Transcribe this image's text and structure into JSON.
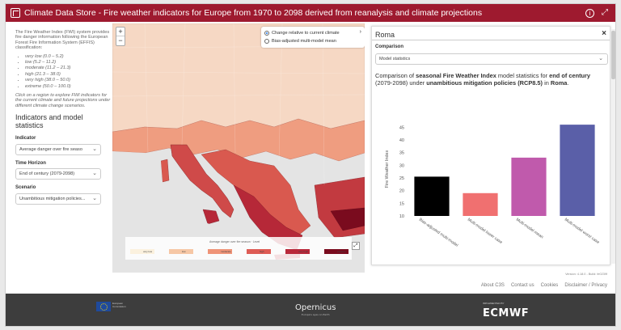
{
  "app": {
    "title": "Climate Data Store - Fire weather indicators for Europe from 1970 to 2098 derived from reanalysis and climate projections",
    "info_icon": "info-icon",
    "expand_icon": "expand-icon"
  },
  "sidebar": {
    "intro": "The Fire Weather Index (FWI) system provides fire danger information following the European Forest Fire Information System (EFFIS) classification:",
    "classes": [
      "very low (0.0 – 5.2)",
      "low (5.2 – 11.2)",
      "moderate (11.2 – 21.3)",
      "high (21.3 – 38.0)",
      "very high (38.0 – 50.0)",
      "extreme (50.0 – 100.0)"
    ],
    "help": "Click on a region to explore FWI indicators for the current climate and future projections under different climate change scenarios.",
    "heading": "Indicators and model statistics",
    "indicator_label": "Indicator",
    "indicator_value": "Average danger over fire seaso",
    "horizon_label": "Time Horizon",
    "horizon_value": "End of century (2079-2098)",
    "scenario_label": "Scenario",
    "scenario_value": "Unambitious mitigation policies..."
  },
  "map": {
    "zoom_in": "+",
    "zoom_out": "−",
    "option_1": "Change relative to current climate",
    "option_2": "Bias-adjusted multi-model mean",
    "selected_option": "Change relative to current climate",
    "legend_title": "Average danger over fire season · Level",
    "legend_items": [
      "very low",
      "low",
      "moderate",
      "high",
      "very high",
      "extreme"
    ],
    "legend_colors": [
      "#fbf1de",
      "#f6c7a5",
      "#ef9478",
      "#de5c55",
      "#b9283a",
      "#7a0b1e"
    ]
  },
  "panel": {
    "region": "Roma",
    "close": "×",
    "comparison_label": "Comparison",
    "comparison_value": "Model statistics",
    "desc_pre": "Comparison of ",
    "desc_b1": "seasonal Fire Weather Index",
    "desc_mid1": " model statistics for ",
    "desc_b2": "end of century",
    "desc_mid2": " (2079-2098) under ",
    "desc_b3": "unambitious mitigation policies (RCP8.5)",
    "desc_mid3": " in ",
    "desc_b4": "Roma",
    "desc_end": "."
  },
  "chart_data": {
    "type": "bar",
    "categories": [
      "Bias-adjusted multi-model",
      "Multi-model lower case",
      "Multi-model mean",
      "Multi-model worst case"
    ],
    "values": [
      25.5,
      19,
      33,
      46
    ],
    "colors": [
      "#000000",
      "#f07070",
      "#c05aac",
      "#5a5fa8"
    ],
    "ylabel": "Fire Weather Index",
    "ylim": [
      10,
      47
    ],
    "yticks": [
      10,
      15,
      20,
      25,
      30,
      35,
      40,
      45
    ]
  },
  "footer": {
    "version": "Version: 4.18.0 - Build: fe0239f",
    "links": [
      "About C3S",
      "Contact us",
      "Cookies",
      "Disclaimer / Privacy"
    ],
    "eu_text": "European Commission",
    "copernicus": "Opernicus",
    "copernicus_sub": "Europe's eyes on Earth",
    "ecmwf_sup": "IMPLEMENTED BY",
    "ecmwf": "ECMWF"
  }
}
